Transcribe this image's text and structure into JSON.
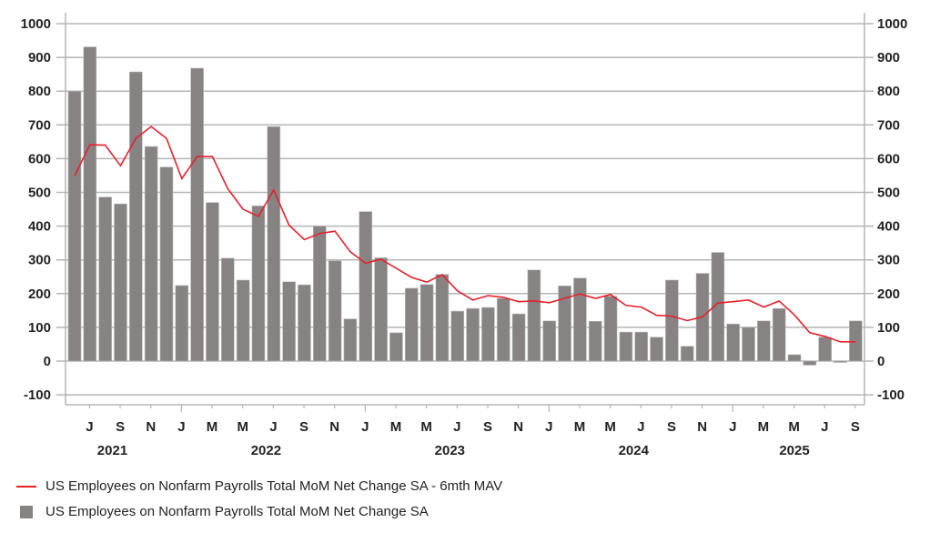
{
  "chart_data": {
    "type": "bar",
    "categories": [
      "Jun 2021",
      "Jul 2021",
      "Aug 2021",
      "Sep 2021",
      "Oct 2021",
      "Nov 2021",
      "Dec 2021",
      "Jan 2022",
      "Feb 2022",
      "Mar 2022",
      "Apr 2022",
      "May 2022",
      "Jun 2022",
      "Jul 2022",
      "Aug 2022",
      "Sep 2022",
      "Oct 2022",
      "Nov 2022",
      "Dec 2022",
      "Jan 2023",
      "Feb 2023",
      "Mar 2023",
      "Apr 2023",
      "May 2023",
      "Jun 2023",
      "Jul 2023",
      "Aug 2023",
      "Sep 2023",
      "Oct 2023",
      "Nov 2023",
      "Dec 2023",
      "Jan 2024",
      "Feb 2024",
      "Mar 2024",
      "Apr 2024",
      "May 2024",
      "Jun 2024",
      "Jul 2024",
      "Aug 2024",
      "Sep 2024",
      "Oct 2024",
      "Nov 2024",
      "Dec 2024",
      "Jan 2025",
      "Feb 2025",
      "Mar 2025",
      "Apr 2025",
      "May 2025",
      "Jun 2025",
      "Jul 2025",
      "Aug 2025",
      "Sep 2025"
    ],
    "series": [
      {
        "name": "US Employees on Nonfarm Payrolls Total MoM Net Change SA",
        "kind": "bar",
        "color": "#868382",
        "values": [
          800,
          931,
          486,
          466,
          857,
          636,
          575,
          224,
          868,
          470,
          305,
          240,
          460,
          695,
          235,
          226,
          400,
          297,
          125,
          443,
          306,
          84,
          216,
          227,
          257,
          148,
          156,
          159,
          186,
          140,
          270,
          119,
          223,
          246,
          118,
          192,
          86,
          86,
          71,
          240,
          44,
          260,
          322,
          110,
          100,
          119,
          156,
          19,
          -12,
          71,
          -4,
          119
        ]
      },
      {
        "name": "US Employees on Nonfarm Payrolls Total MoM Net Change SA - 6mth MAV",
        "kind": "line",
        "color": "#e8202a",
        "values": [
          549,
          641,
          640,
          579,
          660,
          695,
          660,
          541,
          606,
          606,
          511,
          450,
          429,
          507,
          403,
          360,
          378,
          385,
          324,
          290,
          302,
          275,
          248,
          234,
          256,
          208,
          181,
          194,
          189,
          176,
          178,
          173,
          186,
          199,
          186,
          197,
          165,
          160,
          136,
          133,
          120,
          131,
          172,
          176,
          181,
          160,
          178,
          137,
          84,
          73,
          57,
          57
        ]
      }
    ],
    "x_tick_labels": [
      "J",
      "S",
      "N",
      "J",
      "M",
      "M",
      "J",
      "S",
      "N",
      "J",
      "M",
      "M",
      "J",
      "S",
      "N",
      "J",
      "M",
      "M",
      "J",
      "S",
      "N",
      "J",
      "M",
      "M",
      "J",
      "S"
    ],
    "x_year_labels": [
      "2021",
      "2022",
      "2023",
      "2024",
      "2025"
    ],
    "y_tick_labels": [
      "-100",
      "0",
      "100",
      "200",
      "300",
      "400",
      "500",
      "600",
      "700",
      "800",
      "900",
      "1000"
    ],
    "ylim": [
      -100,
      1000
    ],
    "y_axes": "left and right (mirrored)",
    "grid": true,
    "legend_position": "bottom-left"
  },
  "legend": {
    "line_label": "US Employees on Nonfarm Payrolls Total MoM Net Change SA - 6mth MAV",
    "bar_label": "US Employees on Nonfarm Payrolls Total MoM Net Change SA"
  }
}
